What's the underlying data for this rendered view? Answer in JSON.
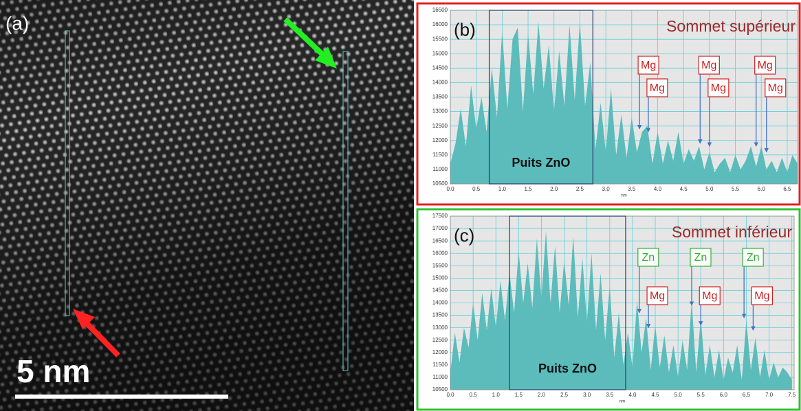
{
  "image_panel": {
    "label": "(a)",
    "scale_bar": "5 nm"
  },
  "chart_data": [
    {
      "type": "area",
      "panel_label": "(b)",
      "title": "Sommet supérieur",
      "x_label": "nm",
      "color": "#5cbcbc",
      "border_color": "#e02020",
      "grid": true,
      "x": [
        0,
        0.1,
        0.2,
        0.3,
        0.4,
        0.5,
        0.6,
        0.7,
        0.8,
        0.9,
        1,
        1.1,
        1.2,
        1.3,
        1.4,
        1.5,
        1.6,
        1.7,
        1.8,
        1.9,
        2,
        2.1,
        2.2,
        2.3,
        2.4,
        2.5,
        2.6,
        2.7,
        2.8,
        2.9,
        3,
        3.1,
        3.2,
        3.3,
        3.4,
        3.5,
        3.6,
        3.7,
        3.8,
        3.9,
        4,
        4.1,
        4.2,
        4.3,
        4.4,
        4.5,
        4.6,
        4.7,
        4.8,
        4.9,
        5,
        5.1,
        5.2,
        5.3,
        5.4,
        5.5,
        5.6,
        5.7,
        5.8,
        5.9,
        6,
        6.1,
        6.2,
        6.3,
        6.4,
        6.5,
        6.6,
        6.7
      ],
      "values": [
        11200,
        11900,
        13100,
        11800,
        13900,
        12400,
        13500,
        12300,
        14500,
        12800,
        15800,
        13100,
        15500,
        15900,
        13000,
        15700,
        13600,
        16100,
        13800,
        15300,
        13000,
        15100,
        13200,
        16000,
        13400,
        16100,
        13200,
        14700,
        11700,
        13300,
        11600,
        13800,
        11500,
        12900,
        11400,
        12800,
        11600,
        12300,
        12500,
        11200,
        12300,
        11200,
        12000,
        11300,
        12300,
        11200,
        11700,
        11300,
        11800,
        11000,
        11600,
        10900,
        11200,
        11400,
        10900,
        11500,
        11000,
        11300,
        11800,
        11100,
        11800,
        11000,
        11300,
        10900,
        11400,
        10900,
        11500,
        11200
      ],
      "xlim": [
        0,
        6.7
      ],
      "ylim": [
        10500,
        16500
      ],
      "xticks": [
        {
          "value": 0,
          "label": "0.0"
        },
        0.5,
        {
          "value": 1,
          "label": "1.0"
        },
        1.5,
        {
          "value": 2,
          "label": "2.0"
        },
        2.5,
        {
          "value": 3,
          "label": "3.0"
        },
        3.5,
        {
          "value": 4,
          "label": "4.0"
        },
        4.5,
        {
          "value": 5,
          "label": "5.0"
        },
        5.5,
        {
          "value": 6,
          "label": "6.0"
        },
        6.5
      ],
      "yticks": [
        10500,
        11000,
        11500,
        12000,
        12500,
        13000,
        13500,
        14000,
        14500,
        15000,
        15500,
        16000,
        16500
      ],
      "highlight": {
        "label": "Puits ZnO",
        "x": [
          0.75,
          2.75
        ]
      },
      "annotations": [
        {
          "text": "Mg",
          "x": 3.65,
          "y": 12400,
          "color": "#d02020"
        },
        {
          "text": "Mg",
          "x": 3.82,
          "y": 12300,
          "color": "#d02020"
        },
        {
          "text": "Mg",
          "x": 4.82,
          "y": 11900,
          "color": "#d02020"
        },
        {
          "text": "Mg",
          "x": 5.0,
          "y": 11800,
          "color": "#d02020"
        },
        {
          "text": "Mg",
          "x": 5.9,
          "y": 11800,
          "color": "#d02020"
        },
        {
          "text": "Mg",
          "x": 6.1,
          "y": 11600,
          "color": "#d02020"
        }
      ]
    },
    {
      "type": "area",
      "panel_label": "(c)",
      "title": "Sommet inférieur",
      "x_label": "nm",
      "color": "#5cbcbc",
      "border_color": "#30c030",
      "grid": true,
      "x": [
        0,
        0.1,
        0.2,
        0.3,
        0.4,
        0.5,
        0.6,
        0.7,
        0.8,
        0.9,
        1,
        1.1,
        1.2,
        1.3,
        1.4,
        1.5,
        1.6,
        1.7,
        1.8,
        1.9,
        2,
        2.1,
        2.2,
        2.3,
        2.4,
        2.5,
        2.6,
        2.7,
        2.8,
        2.9,
        3,
        3.1,
        3.2,
        3.3,
        3.4,
        3.5,
        3.6,
        3.7,
        3.8,
        3.9,
        4,
        4.1,
        4.2,
        4.3,
        4.4,
        4.5,
        4.6,
        4.7,
        4.8,
        4.9,
        5,
        5.1,
        5.2,
        5.3,
        5.4,
        5.5,
        5.6,
        5.7,
        5.8,
        5.9,
        6,
        6.1,
        6.2,
        6.3,
        6.4,
        6.5,
        6.6,
        6.7,
        6.8,
        6.9,
        7,
        7.1,
        7.2,
        7.3,
        7.4,
        7.5
      ],
      "values": [
        11200,
        12800,
        11600,
        13000,
        12200,
        14000,
        12500,
        14400,
        12900,
        14600,
        13000,
        14900,
        13300,
        15200,
        13600,
        16100,
        14000,
        15600,
        13800,
        16600,
        14200,
        16900,
        14000,
        16300,
        13600,
        15700,
        13900,
        16700,
        13400,
        15800,
        13200,
        16000,
        12900,
        15200,
        12500,
        14700,
        11800,
        13600,
        11500,
        12800,
        11400,
        14100,
        12000,
        13400,
        11300,
        13100,
        11400,
        12700,
        11200,
        12300,
        11000,
        12500,
        11300,
        14100,
        11200,
        13400,
        11100,
        12300,
        11000,
        12100,
        10900,
        11800,
        11200,
        12300,
        10900,
        13300,
        11300,
        12600,
        11000,
        12100,
        10900,
        11600,
        11000,
        11400,
        11200,
        10900
      ],
      "xlim": [
        0,
        7.55
      ],
      "ylim": [
        10500,
        17500
      ],
      "xticks": [
        {
          "value": 0,
          "label": "0.0"
        },
        0.5,
        {
          "value": 1,
          "label": "1.0"
        },
        1.5,
        {
          "value": 2,
          "label": "2.0"
        },
        2.5,
        {
          "value": 3,
          "label": "3.0"
        },
        3.5,
        {
          "value": 4,
          "label": "4.0"
        },
        4.5,
        {
          "value": 5,
          "label": "5.0"
        },
        5.5,
        {
          "value": 6,
          "label": "6.0"
        },
        6.5,
        {
          "value": 7,
          "label": "7.0"
        },
        7.5
      ],
      "yticks": [
        10500,
        11000,
        11500,
        12000,
        12500,
        13000,
        13500,
        14000,
        14500,
        15000,
        15500,
        16000,
        16500,
        17000,
        17500
      ],
      "highlight": {
        "label": "Puits ZnO",
        "x": [
          1.3,
          3.85
        ]
      },
      "annotations": [
        {
          "text": "Zn",
          "x": 4.15,
          "y": 13600,
          "color": "#30b030"
        },
        {
          "text": "Mg",
          "x": 4.35,
          "y": 13000,
          "color": "#d02020"
        },
        {
          "text": "Zn",
          "x": 5.3,
          "y": 13900,
          "color": "#30b030"
        },
        {
          "text": "Mg",
          "x": 5.5,
          "y": 13100,
          "color": "#d02020"
        },
        {
          "text": "Zn",
          "x": 6.45,
          "y": 13400,
          "color": "#30b030"
        },
        {
          "text": "Mg",
          "x": 6.65,
          "y": 12900,
          "color": "#d02020"
        }
      ]
    }
  ]
}
